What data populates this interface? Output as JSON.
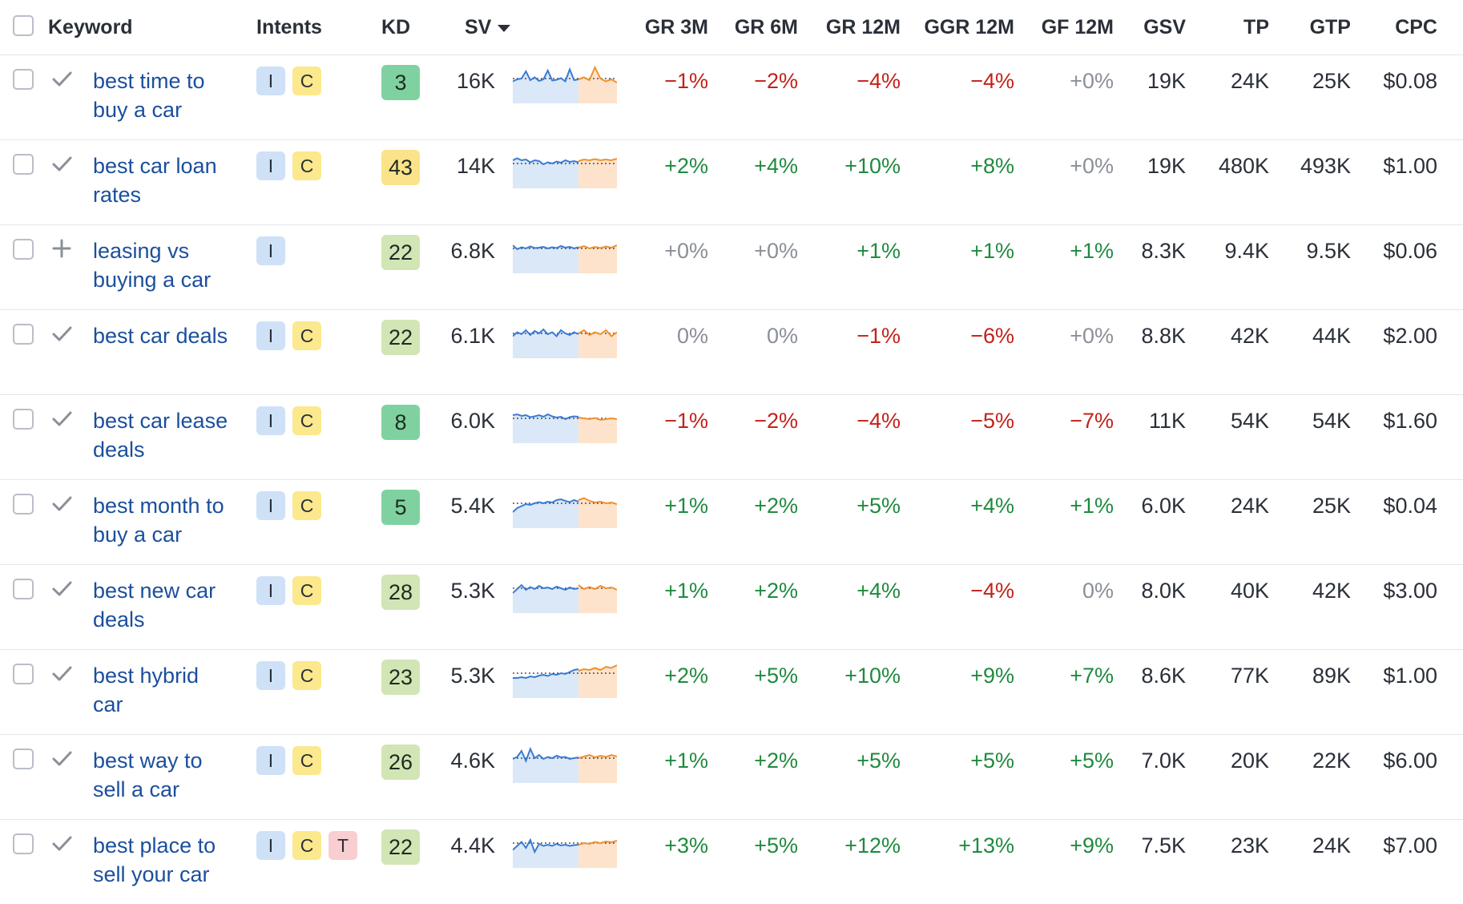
{
  "header": {
    "keyword": "Keyword",
    "intents": "Intents",
    "kd": "KD",
    "sv": "SV",
    "gr3m": "GR 3M",
    "gr6m": "GR 6M",
    "gr12m": "GR 12M",
    "ggr12m": "GGR 12M",
    "gf12m": "GF 12M",
    "gsv": "GSV",
    "tp": "TP",
    "gtp": "GTP",
    "cpc": "CPC"
  },
  "colors": {
    "link": "#1b4f9c",
    "positive": "#1f8a3f",
    "negative": "#c2221a",
    "neutral_change": "#8a8f98",
    "intent_informational": "#cfe1f7",
    "intent_commercial": "#fce88d",
    "intent_transactional": "#f8ced1",
    "kd_easy": "#7fd2a0",
    "kd_medium": "#d2e5b4",
    "kd_hard": "#fbe38a",
    "spark_past": "#3a7bd5",
    "spark_forecast": "#f0912e"
  },
  "rows": [
    {
      "keyword": "best time to buy a car",
      "status": "check-icon",
      "intents": [
        "I",
        "C"
      ],
      "kd": "3",
      "kd_level": "easy",
      "sv": "16K",
      "gr3m": "−1%",
      "gr6m": "−2%",
      "gr12m": "−4%",
      "ggr12m": "−4%",
      "gf12m": "+0%",
      "gsv": "19K",
      "tp": "24K",
      "gtp": "25K",
      "cpc": "$0.08",
      "trend": [
        0.45,
        0.4,
        0.38,
        0.2,
        0.42,
        0.35,
        0.44,
        0.4,
        0.18,
        0.43,
        0.41,
        0.37,
        0.45,
        0.15,
        0.42,
        0.4
      ],
      "forecast": [
        0.4,
        0.35,
        0.42,
        0.1,
        0.38,
        0.45,
        0.4,
        0.48
      ]
    },
    {
      "keyword": "best car loan rates",
      "status": "check-icon",
      "intents": [
        "I",
        "C"
      ],
      "kd": "43",
      "kd_level": "hard",
      "sv": "14K",
      "gr3m": "+2%",
      "gr6m": "+4%",
      "gr12m": "+10%",
      "ggr12m": "+8%",
      "gf12m": "+0%",
      "gsv": "19K",
      "tp": "480K",
      "gtp": "493K",
      "cpc": "$1.00",
      "trend": [
        0.3,
        0.25,
        0.3,
        0.28,
        0.35,
        0.3,
        0.32,
        0.4,
        0.35,
        0.38,
        0.33,
        0.36,
        0.3,
        0.34,
        0.32,
        0.35
      ],
      "forecast": [
        0.32,
        0.28,
        0.3,
        0.27,
        0.3,
        0.28,
        0.3,
        0.26
      ]
    },
    {
      "keyword": "leasing vs buying a car",
      "status": "plus-icon",
      "intents": [
        "I"
      ],
      "kd": "22",
      "kd_level": "medium",
      "sv": "6.8K",
      "gr3m": "+0%",
      "gr6m": "+0%",
      "gr12m": "+1%",
      "ggr12m": "+1%",
      "gf12m": "+1%",
      "gsv": "8.3K",
      "tp": "9.4K",
      "gtp": "9.5K",
      "cpc": "$0.06",
      "trend": [
        0.3,
        0.4,
        0.35,
        0.38,
        0.33,
        0.37,
        0.36,
        0.34,
        0.38,
        0.35,
        0.37,
        0.32,
        0.36,
        0.34,
        0.38,
        0.35
      ],
      "forecast": [
        0.36,
        0.32,
        0.38,
        0.34,
        0.37,
        0.33,
        0.36,
        0.3
      ]
    },
    {
      "keyword": "best car deals",
      "status": "check-icon",
      "intents": [
        "I",
        "C"
      ],
      "kd": "22",
      "kd_level": "medium",
      "sv": "6.1K",
      "gr3m": "0%",
      "gr6m": "0%",
      "gr12m": "−1%",
      "ggr12m": "−6%",
      "gf12m": "+0%",
      "gsv": "8.8K",
      "tp": "42K",
      "gtp": "44K",
      "cpc": "$2.00",
      "trend": [
        0.45,
        0.35,
        0.4,
        0.3,
        0.42,
        0.32,
        0.38,
        0.28,
        0.4,
        0.35,
        0.45,
        0.3,
        0.38,
        0.42,
        0.35,
        0.4
      ],
      "forecast": [
        0.38,
        0.3,
        0.42,
        0.35,
        0.4,
        0.3,
        0.45,
        0.35
      ]
    },
    {
      "keyword": "best car lease deals",
      "status": "check-icon",
      "intents": [
        "I",
        "C"
      ],
      "kd": "8",
      "kd_level": "easy",
      "sv": "6.0K",
      "gr3m": "−1%",
      "gr6m": "−2%",
      "gr12m": "−4%",
      "ggr12m": "−5%",
      "gf12m": "−7%",
      "gsv": "11K",
      "tp": "54K",
      "gtp": "54K",
      "cpc": "$1.60",
      "trend": [
        0.3,
        0.28,
        0.32,
        0.3,
        0.35,
        0.33,
        0.3,
        0.34,
        0.28,
        0.33,
        0.36,
        0.34,
        0.4,
        0.35,
        0.33,
        0.34
      ],
      "forecast": [
        0.36,
        0.38,
        0.4,
        0.37,
        0.42,
        0.4,
        0.38,
        0.4
      ]
    },
    {
      "keyword": "best month to buy a car",
      "status": "check-icon",
      "intents": [
        "I",
        "C"
      ],
      "kd": "5",
      "kd_level": "easy",
      "sv": "5.4K",
      "gr3m": "+1%",
      "gr6m": "+2%",
      "gr12m": "+5%",
      "ggr12m": "+4%",
      "gf12m": "+1%",
      "gsv": "6.0K",
      "tp": "24K",
      "gtp": "25K",
      "cpc": "$0.04",
      "trend": [
        0.6,
        0.5,
        0.45,
        0.4,
        0.42,
        0.38,
        0.35,
        0.38,
        0.34,
        0.36,
        0.3,
        0.28,
        0.32,
        0.35,
        0.3,
        0.34
      ],
      "forecast": [
        0.3,
        0.25,
        0.32,
        0.36,
        0.34,
        0.38,
        0.36,
        0.4
      ]
    },
    {
      "keyword": "best new car deals",
      "status": "check-icon",
      "intents": [
        "I",
        "C"
      ],
      "kd": "28",
      "kd_level": "medium",
      "sv": "5.3K",
      "gr3m": "+1%",
      "gr6m": "+2%",
      "gr12m": "+4%",
      "ggr12m": "−4%",
      "gf12m": "0%",
      "gsv": "8.0K",
      "tp": "40K",
      "gtp": "42K",
      "cpc": "$3.00",
      "trend": [
        0.5,
        0.4,
        0.3,
        0.42,
        0.35,
        0.4,
        0.32,
        0.38,
        0.36,
        0.4,
        0.34,
        0.38,
        0.42,
        0.36,
        0.4,
        0.38
      ],
      "forecast": [
        0.3,
        0.4,
        0.35,
        0.4,
        0.32,
        0.38,
        0.36,
        0.42
      ]
    },
    {
      "keyword": "best hybrid car",
      "status": "check-icon",
      "intents": [
        "I",
        "C"
      ],
      "kd": "23",
      "kd_level": "medium",
      "sv": "5.3K",
      "gr3m": "+2%",
      "gr6m": "+5%",
      "gr12m": "+10%",
      "ggr12m": "+9%",
      "gf12m": "+7%",
      "gsv": "8.6K",
      "tp": "77K",
      "gtp": "89K",
      "cpc": "$1.00",
      "trend": [
        0.5,
        0.5,
        0.48,
        0.5,
        0.46,
        0.48,
        0.44,
        0.42,
        0.45,
        0.4,
        0.42,
        0.38,
        0.4,
        0.35,
        0.3,
        0.28
      ],
      "forecast": [
        0.32,
        0.28,
        0.3,
        0.25,
        0.3,
        0.22,
        0.25,
        0.18
      ]
    },
    {
      "keyword": "best way to sell a car",
      "status": "check-icon",
      "intents": [
        "I",
        "C"
      ],
      "kd": "26",
      "kd_level": "medium",
      "sv": "4.6K",
      "gr3m": "+1%",
      "gr6m": "+2%",
      "gr12m": "+5%",
      "ggr12m": "+5%",
      "gf12m": "+5%",
      "gsv": "7.0K",
      "tp": "20K",
      "gtp": "22K",
      "cpc": "$6.00",
      "trend": [
        0.4,
        0.35,
        0.2,
        0.45,
        0.15,
        0.38,
        0.3,
        0.4,
        0.35,
        0.38,
        0.32,
        0.36,
        0.35,
        0.4,
        0.38,
        0.36
      ],
      "forecast": [
        0.38,
        0.34,
        0.3,
        0.36,
        0.32,
        0.35,
        0.3,
        0.34
      ]
    },
    {
      "keyword": "best place to sell your car",
      "status": "check-icon",
      "intents": [
        "I",
        "C",
        "T"
      ],
      "kd": "22",
      "kd_level": "medium",
      "sv": "4.4K",
      "gr3m": "+3%",
      "gr6m": "+5%",
      "gr12m": "+12%",
      "ggr12m": "+13%",
      "gf12m": "+9%",
      "gsv": "7.5K",
      "tp": "23K",
      "gtp": "24K",
      "cpc": "$7.00",
      "trend": [
        0.55,
        0.45,
        0.35,
        0.5,
        0.3,
        0.6,
        0.4,
        0.45,
        0.42,
        0.45,
        0.4,
        0.44,
        0.42,
        0.45,
        0.43,
        0.42
      ],
      "forecast": [
        0.42,
        0.38,
        0.4,
        0.35,
        0.38,
        0.34,
        0.36,
        0.32
      ]
    }
  ]
}
